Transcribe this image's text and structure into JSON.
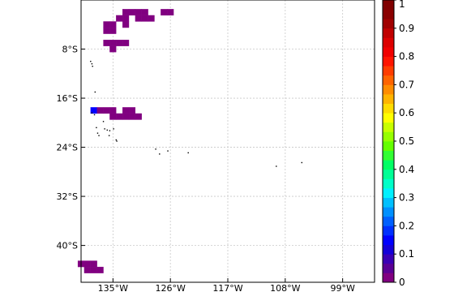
{
  "chart_data": {
    "type": "heatmap",
    "map": {
      "lon_range": [
        -140,
        -94
      ],
      "lat_range": [
        -46,
        0
      ],
      "grid": true,
      "xticks": [
        {
          "value": -135,
          "label": "135°W"
        },
        {
          "value": -126,
          "label": "126°W"
        },
        {
          "value": -117,
          "label": "117°W"
        },
        {
          "value": -108,
          "label": "108°W"
        },
        {
          "value": -99,
          "label": "99°W"
        }
      ],
      "yticks": [
        {
          "value": -8,
          "label": "8°S"
        },
        {
          "value": -16,
          "label": "16°S"
        },
        {
          "value": -24,
          "label": "24°S"
        },
        {
          "value": -32,
          "label": "32°S"
        },
        {
          "value": -40,
          "label": "40°S"
        }
      ],
      "cell_size_deg": 1,
      "cells": [
        {
          "lon": -133,
          "lat": -2,
          "value": 0.03
        },
        {
          "lon": -132,
          "lat": -2,
          "value": 0.03
        },
        {
          "lon": -131,
          "lat": -2,
          "value": 0.03
        },
        {
          "lon": -130,
          "lat": -2,
          "value": 0.03
        },
        {
          "lon": -127,
          "lat": -2,
          "value": 0.03
        },
        {
          "lon": -126,
          "lat": -2,
          "value": 0.03
        },
        {
          "lon": -134,
          "lat": -3,
          "value": 0.03
        },
        {
          "lon": -133,
          "lat": -3,
          "value": 0.03
        },
        {
          "lon": -131,
          "lat": -3,
          "value": 0.03
        },
        {
          "lon": -130,
          "lat": -3,
          "value": 0.03
        },
        {
          "lon": -129,
          "lat": -3,
          "value": 0.03
        },
        {
          "lon": -136,
          "lat": -4,
          "value": 0.03
        },
        {
          "lon": -135,
          "lat": -4,
          "value": 0.03
        },
        {
          "lon": -133,
          "lat": -4,
          "value": 0.03
        },
        {
          "lon": -136,
          "lat": -5,
          "value": 0.03
        },
        {
          "lon": -135,
          "lat": -5,
          "value": 0.03
        },
        {
          "lon": -136,
          "lat": -7,
          "value": 0.03
        },
        {
          "lon": -135,
          "lat": -7,
          "value": 0.03
        },
        {
          "lon": -134,
          "lat": -7,
          "value": 0.03
        },
        {
          "lon": -133,
          "lat": -7,
          "value": 0.03
        },
        {
          "lon": -135,
          "lat": -8,
          "value": 0.03
        },
        {
          "lon": -138,
          "lat": -18,
          "value": 0.15
        },
        {
          "lon": -137,
          "lat": -18,
          "value": 0.03
        },
        {
          "lon": -136,
          "lat": -18,
          "value": 0.03
        },
        {
          "lon": -135,
          "lat": -18,
          "value": 0.03
        },
        {
          "lon": -133,
          "lat": -18,
          "value": 0.03
        },
        {
          "lon": -132,
          "lat": -18,
          "value": 0.03
        },
        {
          "lon": -135,
          "lat": -19,
          "value": 0.03
        },
        {
          "lon": -134,
          "lat": -19,
          "value": 0.03
        },
        {
          "lon": -133,
          "lat": -19,
          "value": 0.03
        },
        {
          "lon": -132,
          "lat": -19,
          "value": 0.03
        },
        {
          "lon": -131,
          "lat": -19,
          "value": 0.03
        },
        {
          "lon": -140,
          "lat": -43,
          "value": 0.03
        },
        {
          "lon": -139,
          "lat": -43,
          "value": 0.03
        },
        {
          "lon": -138,
          "lat": -43,
          "value": 0.03
        },
        {
          "lon": -139,
          "lat": -44,
          "value": 0.03
        },
        {
          "lon": -138,
          "lat": -44,
          "value": 0.03
        },
        {
          "lon": -137,
          "lat": -44,
          "value": 0.03
        }
      ],
      "islands": [
        {
          "lon": -138.5,
          "lat": -10.0
        },
        {
          "lon": -138.3,
          "lat": -10.4
        },
        {
          "lon": -138.2,
          "lat": -10.8
        },
        {
          "lon": -137.8,
          "lat": -15.0
        },
        {
          "lon": -138.3,
          "lat": -18.4
        },
        {
          "lon": -137.9,
          "lat": -18.7
        },
        {
          "lon": -136.5,
          "lat": -19.8
        },
        {
          "lon": -137.6,
          "lat": -20.8
        },
        {
          "lon": -137.4,
          "lat": -21.7
        },
        {
          "lon": -137.2,
          "lat": -22.1
        },
        {
          "lon": -136.3,
          "lat": -21.0
        },
        {
          "lon": -135.9,
          "lat": -21.2
        },
        {
          "lon": -135.5,
          "lat": -21.3
        },
        {
          "lon": -134.9,
          "lat": -21.0
        },
        {
          "lon": -135.6,
          "lat": -22.1
        },
        {
          "lon": -134.5,
          "lat": -22.8
        },
        {
          "lon": -134.4,
          "lat": -23.0
        },
        {
          "lon": -128.3,
          "lat": -24.3
        },
        {
          "lon": -127.7,
          "lat": -25.1
        },
        {
          "lon": -126.4,
          "lat": -24.6
        },
        {
          "lon": -123.2,
          "lat": -24.9
        },
        {
          "lon": -109.4,
          "lat": -27.1
        },
        {
          "lon": -105.4,
          "lat": -26.5
        }
      ]
    },
    "colorbar": {
      "min": 0,
      "max": 1,
      "ticks": [
        "0",
        "0.1",
        "0.2",
        "0.3",
        "0.4",
        "0.5",
        "0.6",
        "0.7",
        "0.8",
        "0.9",
        "1"
      ],
      "colors": [
        "#800080",
        "#5a0094",
        "#3a00b4",
        "#1400d8",
        "#0000ff",
        "#0030ff",
        "#0060ff",
        "#0090ff",
        "#00c0ff",
        "#00f0ff",
        "#00ffc8",
        "#00ff96",
        "#00ff64",
        "#32ff32",
        "#64ff00",
        "#96ff00",
        "#c8ff00",
        "#ffff00",
        "#ffdc00",
        "#ffb400",
        "#ff8c00",
        "#ff6400",
        "#ff3c00",
        "#ff1400",
        "#f00000",
        "#dc0000",
        "#c00000",
        "#a00000",
        "#8a0000",
        "#800000"
      ]
    }
  }
}
